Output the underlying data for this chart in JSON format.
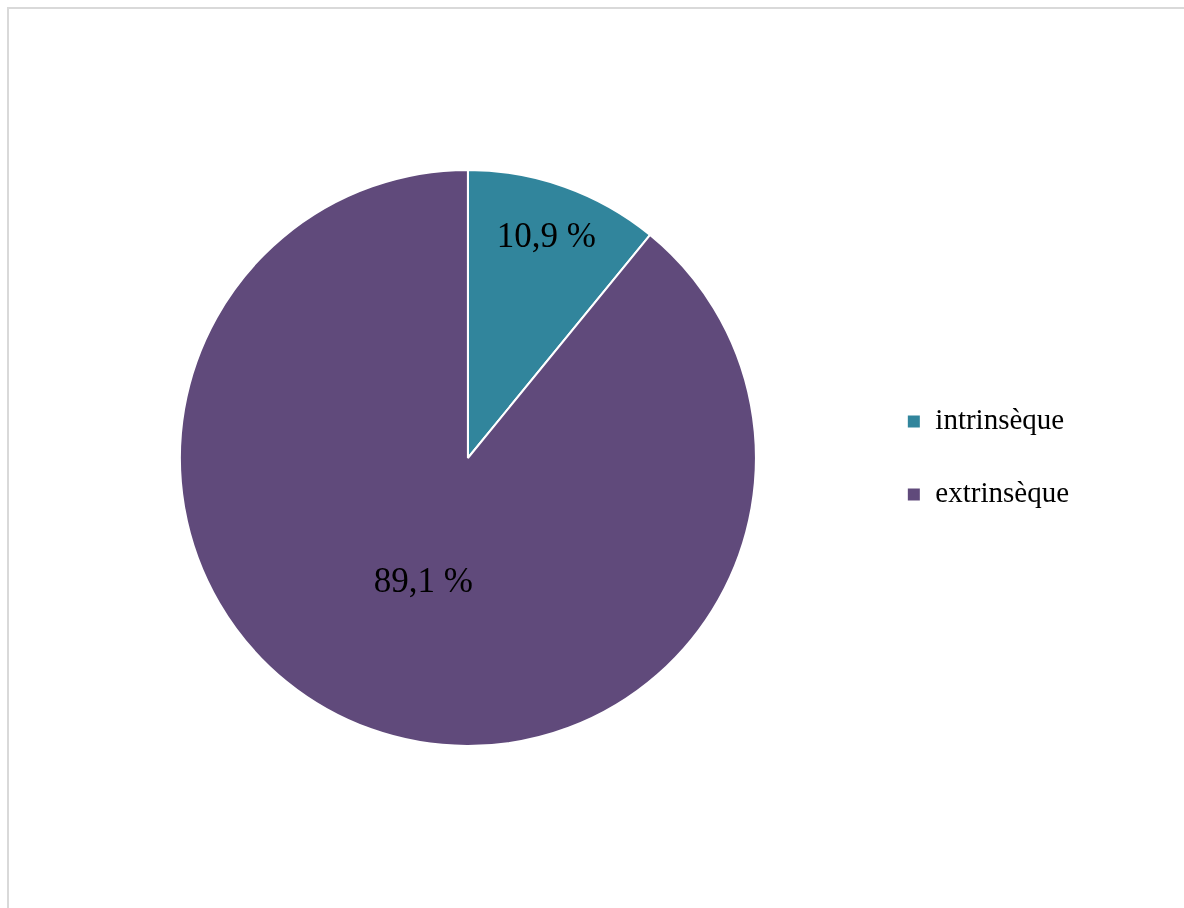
{
  "chart_data": {
    "type": "pie",
    "categories": [
      "intrinsèque",
      "extrinsèque"
    ],
    "values": [
      10.9,
      89.1
    ],
    "colors": [
      "#31859c",
      "#604a7b"
    ],
    "value_labels": [
      "10,9 %",
      "89,1 %"
    ],
    "legend": "right"
  }
}
